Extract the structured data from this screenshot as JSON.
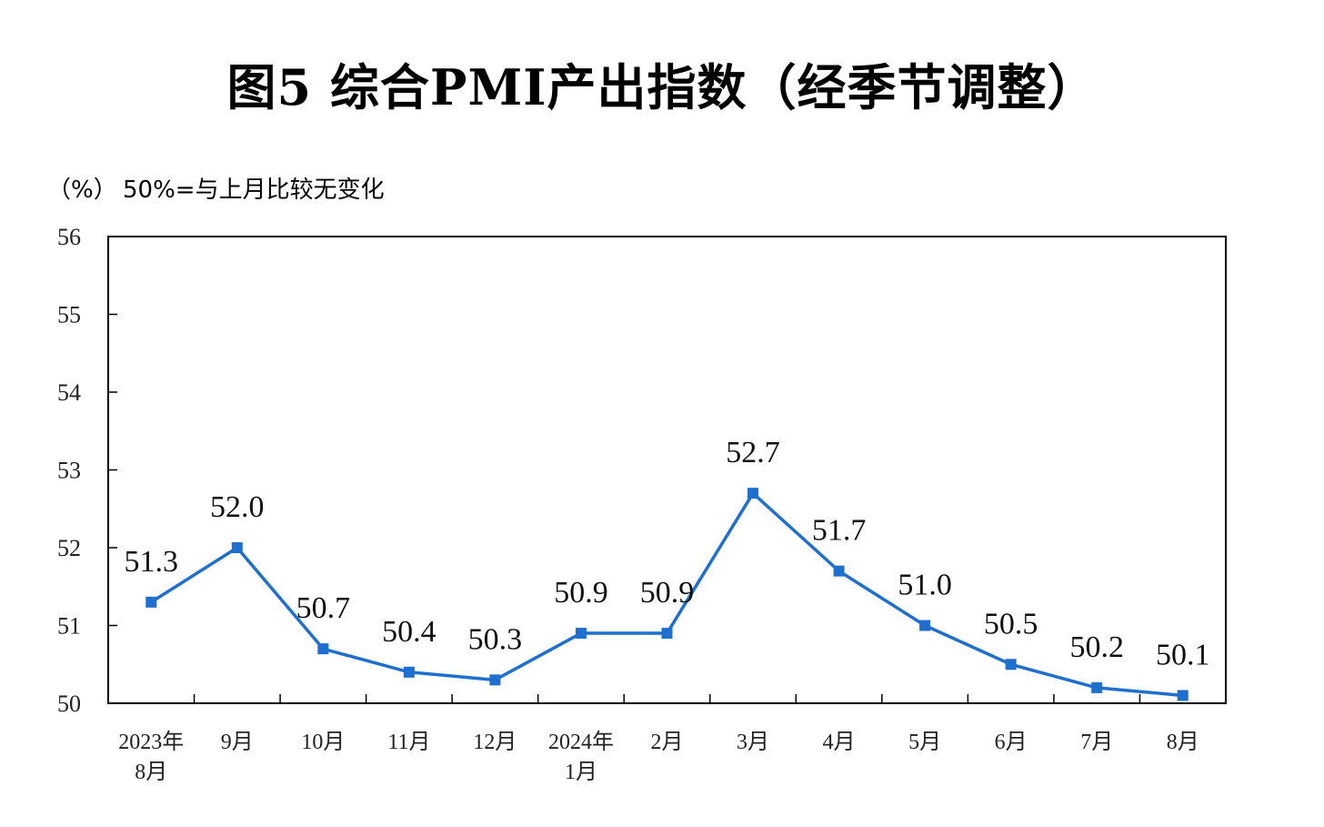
{
  "chart_data": {
    "type": "line",
    "title": "图5  综合PMI产出指数（经季节调整）",
    "unit_label": "（%）",
    "note": "50%=与上月比较无变化",
    "categories": [
      [
        "2023年",
        "8月"
      ],
      [
        "9月"
      ],
      [
        "10月"
      ],
      [
        "11月"
      ],
      [
        "12月"
      ],
      [
        "2024年",
        "1月"
      ],
      [
        "2月"
      ],
      [
        "3月"
      ],
      [
        "4月"
      ],
      [
        "5月"
      ],
      [
        "6月"
      ],
      [
        "7月"
      ],
      [
        "8月"
      ]
    ],
    "values": [
      51.3,
      52.0,
      50.7,
      50.4,
      50.3,
      50.9,
      50.9,
      52.7,
      51.7,
      51.0,
      50.5,
      50.2,
      50.1
    ],
    "value_labels": [
      "51.3",
      "52.0",
      "50.7",
      "50.4",
      "50.3",
      "50.9",
      "50.9",
      "52.7",
      "51.7",
      "51.0",
      "50.5",
      "50.2",
      "50.1"
    ],
    "ylim": [
      50,
      56
    ],
    "yticks": [
      "50",
      "51",
      "52",
      "53",
      "54",
      "55",
      "56"
    ],
    "grid": false,
    "line_color": "#1f6fcf",
    "marker": "square"
  }
}
